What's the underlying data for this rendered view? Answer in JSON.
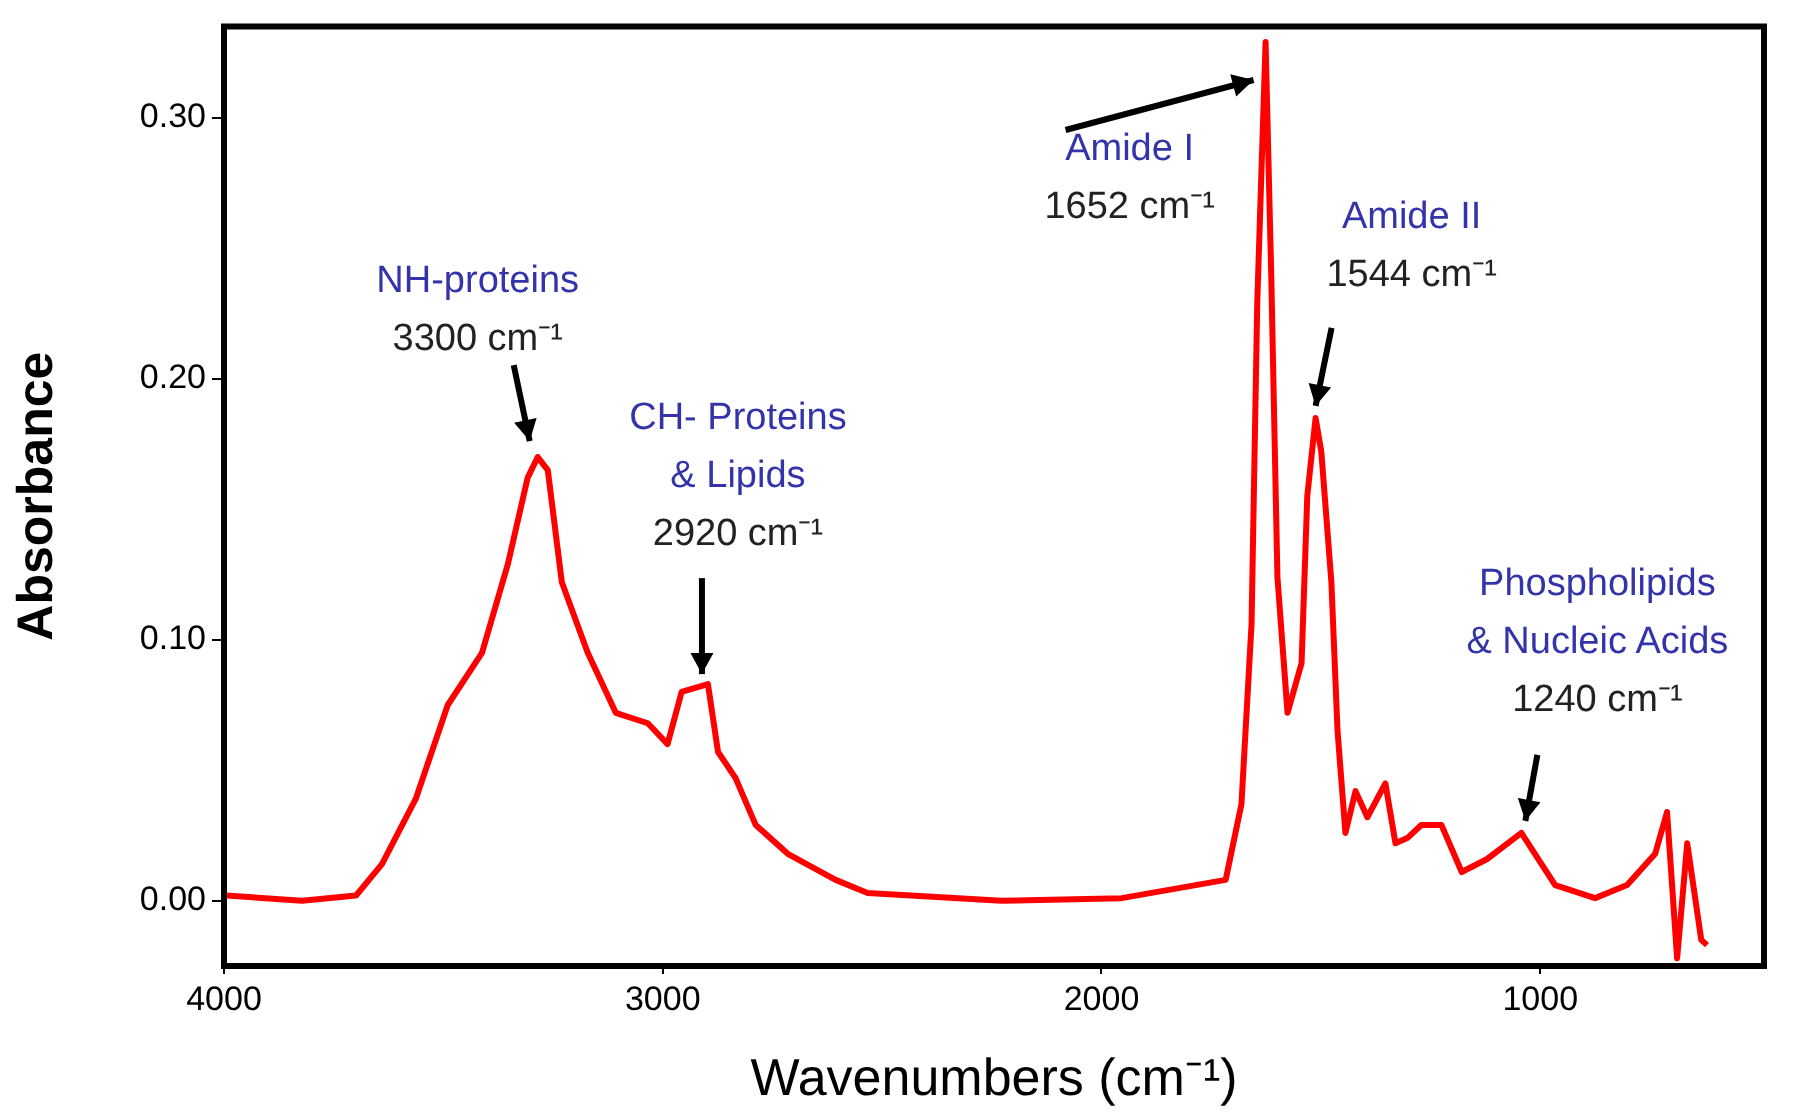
{
  "chart_data": {
    "type": "line",
    "xlabel": "Wavenumbers (cm⁻¹)",
    "ylabel": "Absorbance",
    "xlim": [
      4000,
      490
    ],
    "xticks": [
      4000,
      3000,
      2000,
      1000
    ],
    "ylim": [
      -0.025,
      0.335
    ],
    "yticks": [
      {
        "value": 0,
        "label": "0.00"
      },
      {
        "value": 0.1,
        "label": "0.10"
      },
      {
        "value": 0.2,
        "label": "0.20"
      },
      {
        "value": 0.3,
        "label": "0.30"
      }
    ],
    "grid": false,
    "legend": false,
    "marker": "none",
    "line_style": "solid",
    "annotations": [
      {
        "text": "NH-proteins\n3300 cm⁻¹",
        "x": 3285,
        "y": 0.17
      },
      {
        "text": "CH- Proteins\n& Lipids\n2920 cm⁻¹",
        "x": 2897,
        "y": 0.083
      },
      {
        "text": "Amide I\n1652 cm⁻¹",
        "x": 1626,
        "y": 0.316
      },
      {
        "text": "Amide II\n1544 cm⁻¹",
        "x": 1512,
        "y": 0.185
      },
      {
        "text": "Phospholipids\n& Nucleic Acids\n1240 cm⁻¹",
        "x": 1043,
        "y": 0.026
      }
    ],
    "series": [
      {
        "color": "#ff0000",
        "x": [
          3995,
          3822,
          3699,
          3640,
          3563,
          3490,
          3412,
          3353,
          3308,
          3285,
          3262,
          3230,
          3171,
          3107,
          3034,
          2989,
          2957,
          2897,
          2874,
          2834,
          2788,
          2715,
          2606,
          2533,
          2228,
          1954,
          1717,
          1681,
          1658,
          1645,
          1626,
          1613,
          1599,
          1576,
          1544,
          1531,
          1512,
          1499,
          1476,
          1462,
          1444,
          1421,
          1394,
          1353,
          1330,
          1303,
          1271,
          1225,
          1179,
          1121,
          1043,
          966,
          875,
          802,
          738,
          711,
          688,
          665,
          633,
          620
        ],
        "values": [
          0.002,
          0.0,
          0.002,
          0.014,
          0.039,
          0.075,
          0.095,
          0.129,
          0.162,
          0.17,
          0.165,
          0.122,
          0.095,
          0.072,
          0.068,
          0.06,
          0.08,
          0.083,
          0.057,
          0.047,
          0.029,
          0.018,
          0.008,
          0.003,
          0.0,
          0.001,
          0.008,
          0.037,
          0.106,
          0.229,
          0.329,
          0.239,
          0.124,
          0.072,
          0.091,
          0.155,
          0.185,
          0.172,
          0.122,
          0.065,
          0.026,
          0.042,
          0.032,
          0.045,
          0.022,
          0.024,
          0.029,
          0.029,
          0.011,
          0.016,
          0.026,
          0.006,
          0.001,
          0.006,
          0.018,
          0.034,
          -0.022,
          0.022,
          -0.015,
          -0.017
        ]
      }
    ]
  }
}
